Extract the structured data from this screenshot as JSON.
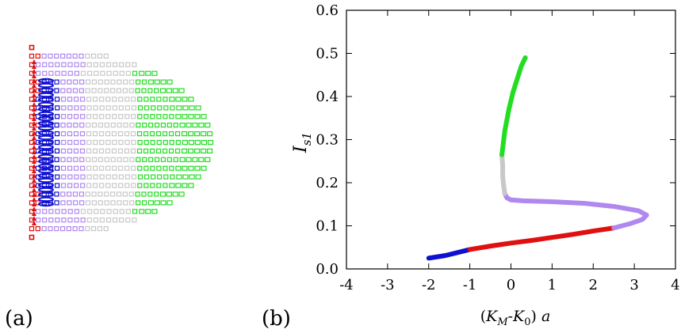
{
  "figure": {
    "panel_a_label": "(a)",
    "panel_b_label": "(b)"
  },
  "colors": {
    "blue": "#1010d0",
    "red": "#e01010",
    "purple": "#b088ee",
    "gray": "#c8c8c8",
    "green": "#22dd22"
  },
  "chart_data": [
    {
      "type": "scatter",
      "panel": "(a)",
      "description_kind": "projected point cloud (hemispherical surface) colored by segment",
      "segments_left_to_right": [
        "red",
        "blue",
        "purple",
        "gray",
        "green"
      ]
    },
    {
      "type": "line",
      "panel": "(b)",
      "xlabel": "(K_M-K_0) a",
      "xlabel_parts": {
        "open": "(",
        "K": "K",
        "M": "M",
        "dash": "-",
        "K0": "K",
        "zero": "0",
        "close": ") ",
        "a": "a"
      },
      "ylabel_parts": {
        "I": "I",
        "sub": "s1"
      },
      "xlim": [
        -4,
        4
      ],
      "ylim": [
        0,
        0.6
      ],
      "xticks": [
        -4,
        -3,
        -2,
        -1,
        0,
        1,
        2,
        3,
        4
      ],
      "yticks": [
        0.0,
        0.1,
        0.2,
        0.3,
        0.4,
        0.5,
        0.6
      ],
      "xtick_labels": [
        "-4",
        "-3",
        "-2",
        "-1",
        "0",
        "1",
        "2",
        "3",
        "4"
      ],
      "ytick_labels": [
        "0.0",
        "0.1",
        "0.2",
        "0.3",
        "0.4",
        "0.5",
        "0.6"
      ],
      "series": [
        {
          "color_key": "blue",
          "x": [
            -2.0,
            -1.6,
            -1.3,
            -1.0
          ],
          "y": [
            0.025,
            0.031,
            0.038,
            0.045
          ]
        },
        {
          "color_key": "red",
          "x": [
            -1.0,
            -0.5,
            0.0,
            0.5,
            1.0,
            1.5,
            2.0,
            2.5
          ],
          "y": [
            0.045,
            0.053,
            0.06,
            0.066,
            0.073,
            0.08,
            0.088,
            0.095
          ]
        },
        {
          "color_key": "purple",
          "x": [
            2.5,
            2.9,
            3.2,
            3.3,
            3.1,
            2.5,
            1.8,
            1.0,
            0.3,
            0.0,
            -0.1,
            -0.15
          ],
          "y": [
            0.095,
            0.105,
            0.115,
            0.125,
            0.135,
            0.145,
            0.152,
            0.156,
            0.158,
            0.16,
            0.165,
            0.175
          ]
        },
        {
          "color_key": "gray",
          "x": [
            -0.15,
            -0.18,
            -0.2,
            -0.2,
            -0.22
          ],
          "y": [
            0.175,
            0.195,
            0.215,
            0.24,
            0.265
          ]
        },
        {
          "color_key": "green",
          "x": [
            -0.22,
            -0.15,
            -0.05,
            0.05,
            0.15,
            0.25,
            0.35
          ],
          "y": [
            0.265,
            0.32,
            0.37,
            0.41,
            0.44,
            0.47,
            0.49
          ]
        }
      ]
    }
  ]
}
